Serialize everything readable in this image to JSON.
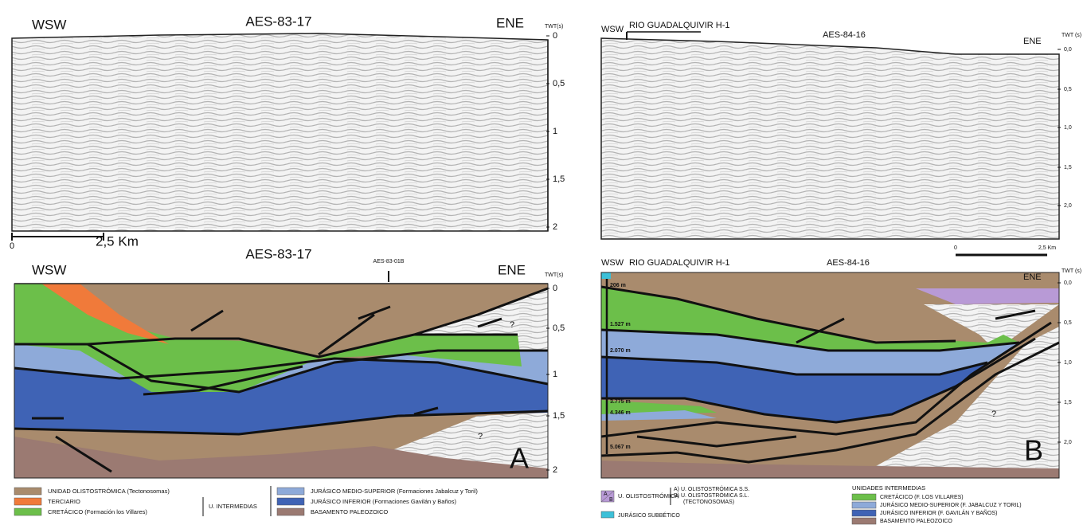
{
  "panel_a_seismic": {
    "left": "WSW",
    "title": "AES-83-17",
    "right": "ENE",
    "axis_label": "TWT(s)",
    "ticks": [
      "0",
      "0,5",
      "1",
      "1,5",
      "2"
    ],
    "scale_start": "0",
    "scale_end": "2,5 Km"
  },
  "panel_a_interpreted": {
    "left": "WSW",
    "title": "AES-83-17",
    "well": "AES-83-01B",
    "right": "ENE",
    "axis_label": "TWT(s)",
    "ticks": [
      "0",
      "0,5",
      "1",
      "1,5",
      "2"
    ],
    "questions": [
      "?",
      "?"
    ],
    "letter": "A"
  },
  "legend_a": {
    "items": [
      "UNIDAD OLISTOSTRÓMICA (Tectonosomas)",
      "TERCIARIO",
      "CRETÁCICO (Formación los Villares)",
      "JURÁSICO MEDIO-SUPERIOR (Formaciones Jabalcuz y Toril)",
      "JURÁSICO INFERIOR (Formaciones Gavilán y Baños)",
      "BASAMENTO PALEOZOICO"
    ],
    "group": "U. INTERMEDIAS"
  },
  "panel_b_seismic": {
    "left": "WSW",
    "well": "RIO GUADALQUIVIR H-1",
    "title": "AES-84-16",
    "right": "ENE",
    "axis_label": "TWT (s)",
    "ticks": [
      "0,0",
      "0,5",
      "1,0",
      "1,5",
      "2,0"
    ],
    "scale_start": "0",
    "scale_end": "2,5 Km"
  },
  "panel_b_interpreted": {
    "left": "WSW",
    "well": "RIO GUADALQUIVIR H-1",
    "title": "AES-84-16",
    "right": "ENE",
    "axis_label": "TWT (s)",
    "ticks": [
      "0,0",
      "0,5",
      "1,0",
      "1,5",
      "2,0"
    ],
    "depths": [
      "206 m",
      "1.527 m",
      "2.070 m",
      "3.775 m",
      "4.346 m",
      "5.067 m"
    ],
    "question": "?",
    "letter": "B"
  },
  "legend_b": {
    "swatch_a": "A",
    "swatch_b": "B",
    "olisto": "U. OLISTOSTRÓMICA",
    "olisto_a": "A) U. OLISTOSTRÓMICA S.S.",
    "olisto_b": "B) U. OLISTOSTRÓMICA S.L.",
    "olisto_b2": "(TECTONOSOMAS)",
    "subbetico": "JURÁSICO SUBBÉTICO",
    "group": "UNIDADES INTERMEDIAS",
    "items": [
      "CRETÁCICO (F. LOS VILLARES)",
      "JURÁSICO MEDIO-SUPERIOR (F. JABALCUZ Y TORIL)",
      "JURÁSICO INFERIOR (F. GAVILÁN Y BAÑOS)",
      "BASAMENTO PALEOZOICO"
    ]
  }
}
